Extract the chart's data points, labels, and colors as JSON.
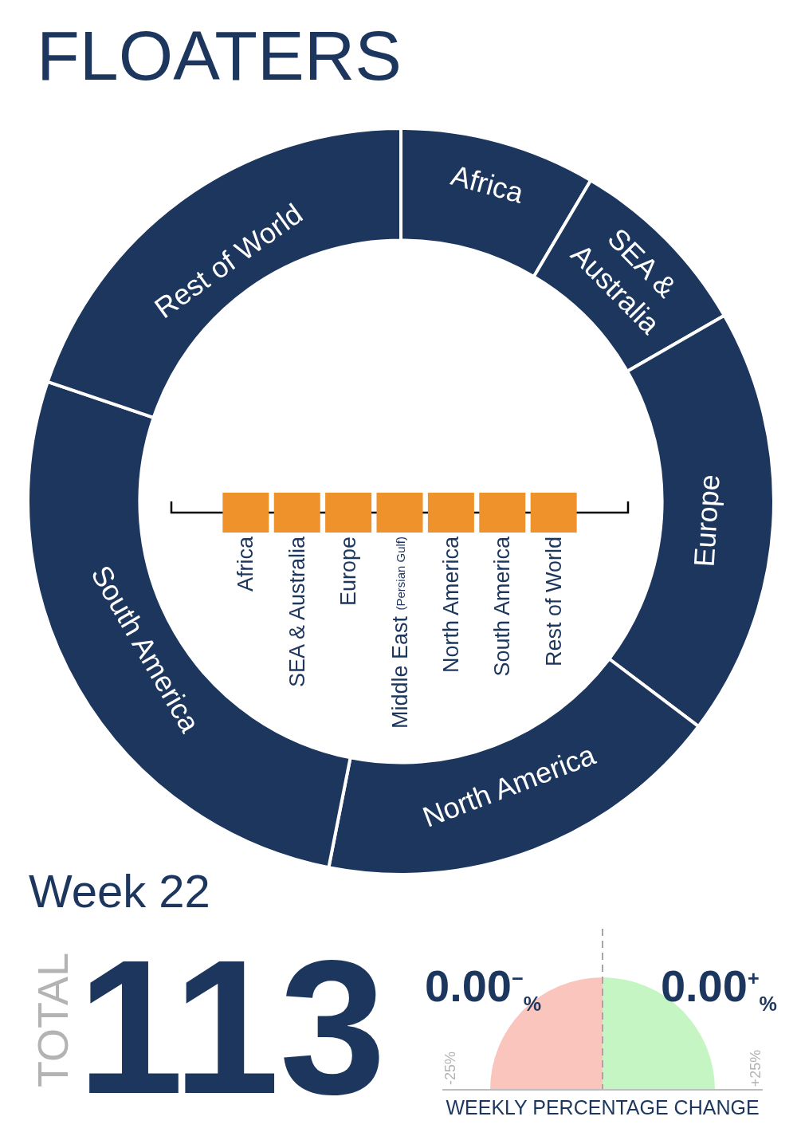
{
  "chart_data": [
    {
      "type": "donut",
      "title": "FLOATERS",
      "categories": [
        "Africa",
        "SEA & Australia",
        "Europe",
        "North America",
        "South America",
        "Rest of World"
      ],
      "values": [
        8.5,
        8.2,
        18.6,
        17.8,
        27.1,
        19.8
      ],
      "colors": [
        "#1c365e",
        "#1c365e",
        "#1c365e",
        "#1c365e",
        "#1c365e",
        "#1c365e"
      ],
      "annotations": [
        "Week 22",
        "TOTAL",
        "113"
      ]
    },
    {
      "type": "other",
      "categories": [
        "Africa",
        "SEA & Australia",
        "Europe",
        "Middle East (Persian Gulf)",
        "North America",
        "South America",
        "Rest of World"
      ]
    },
    {
      "type": "other",
      "xlabel": "WEEKLY PERCENTAGE CHANGE",
      "annotations": [
        "0.00$^{−}$$_{%}$",
        "0.00$^{+}$$_{%}$",
        "-25%",
        "+25%"
      ]
    }
  ]
}
